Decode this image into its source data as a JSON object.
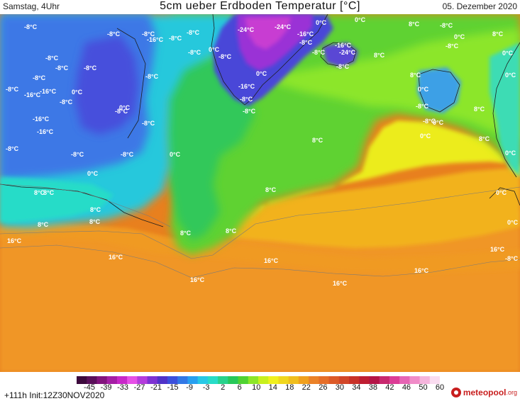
{
  "header": {
    "valid_time": "Samstag, 4Uhr",
    "title": "5cm ueber Erdboden Temperatur [°C]",
    "date": "05. Dezember 2020"
  },
  "map": {
    "variable": "5cm ueber Erdboden Temperatur",
    "labels": [
      {
        "text": "-8°C"
      },
      {
        "text": "-8°C"
      },
      {
        "text": "-16°C"
      },
      {
        "text": "-16°C"
      },
      {
        "text": "-8°C"
      },
      {
        "text": "-24°C"
      },
      {
        "text": "-24°C"
      },
      {
        "text": "0°C"
      },
      {
        "text": "8°C"
      },
      {
        "text": "-8°C"
      },
      {
        "text": "0°C"
      },
      {
        "text": "8°C"
      },
      {
        "text": "-8°C"
      },
      {
        "text": "-8°C"
      },
      {
        "text": "-8°C"
      },
      {
        "text": "-16°C"
      },
      {
        "text": "-8°C"
      },
      {
        "text": "0°C"
      },
      {
        "text": "-8°C"
      },
      {
        "text": "-8°C"
      },
      {
        "text": "-16°C"
      },
      {
        "text": "-8°C"
      },
      {
        "text": "0°C"
      },
      {
        "text": "-8°C"
      },
      {
        "text": "-16°C"
      },
      {
        "text": "-24°C"
      },
      {
        "text": "-8°C"
      },
      {
        "text": "8°C"
      },
      {
        "text": "-8°C"
      },
      {
        "text": "0°C"
      },
      {
        "text": "-8°C"
      },
      {
        "text": "-8°C"
      },
      {
        "text": "-8°C"
      },
      {
        "text": "-8°C"
      },
      {
        "text": "0°C"
      },
      {
        "text": "-16°C"
      },
      {
        "text": "-8°C"
      },
      {
        "text": "-8°C"
      },
      {
        "text": "-16°C"
      },
      {
        "text": "0°C"
      },
      {
        "text": "-8°C"
      },
      {
        "text": "-16°C"
      },
      {
        "text": "-8°C"
      },
      {
        "text": "-8°C"
      },
      {
        "text": "8°C"
      },
      {
        "text": "0°C"
      },
      {
        "text": "-8°C"
      },
      {
        "text": "-8°C"
      },
      {
        "text": "0°C"
      },
      {
        "text": "-8°C"
      },
      {
        "text": "8°C"
      },
      {
        "text": "8°C"
      },
      {
        "text": "-8°C"
      },
      {
        "text": "-8°C"
      },
      {
        "text": "0°C"
      },
      {
        "text": "0°C"
      },
      {
        "text": "0°C"
      },
      {
        "text": "0°C"
      },
      {
        "text": "8°C"
      },
      {
        "text": "0°C"
      },
      {
        "text": "0°C"
      },
      {
        "text": "8°C"
      },
      {
        "text": "8°C"
      },
      {
        "text": "8°C"
      },
      {
        "text": "8°C"
      },
      {
        "text": "8°C"
      },
      {
        "text": "0°C"
      },
      {
        "text": "16°C"
      },
      {
        "text": "16°C"
      },
      {
        "text": "16°C"
      },
      {
        "text": "16°C"
      },
      {
        "text": "16°C"
      },
      {
        "text": "16°C"
      },
      {
        "text": "16°C"
      },
      {
        "text": "8°C"
      },
      {
        "text": "8°C"
      },
      {
        "text": "8°C"
      },
      {
        "text": "0°C"
      },
      {
        "text": "-8°C"
      }
    ]
  },
  "colorbar": {
    "ticks": [
      "-45",
      "-39",
      "-33",
      "-27",
      "-21",
      "-15",
      "-9",
      "-3",
      "2",
      "6",
      "10",
      "14",
      "18",
      "22",
      "26",
      "30",
      "34",
      "38",
      "42",
      "46",
      "50",
      "60"
    ],
    "colors": [
      "#3c0a3c",
      "#5a0f5a",
      "#82147d",
      "#a51ea5",
      "#c828c8",
      "#e650e6",
      "#b43cdc",
      "#7d32d2",
      "#5032c8",
      "#3c50dc",
      "#3278e6",
      "#28a0f0",
      "#28c8e6",
      "#28dcc8",
      "#28d28c",
      "#28c85a",
      "#50d232",
      "#8ce628",
      "#c8f01e",
      "#f0f01e",
      "#f0d71e",
      "#f0be1e",
      "#f0a01e",
      "#eb8228",
      "#e66e28",
      "#dc5a28",
      "#d24628",
      "#c83228",
      "#be1e32",
      "#b41446",
      "#c8286e",
      "#dc3c96",
      "#e664b4",
      "#f08cc8",
      "#f5b4dc",
      "#fadcf0"
    ]
  },
  "footer": {
    "run_info": "+111h  Init:12Z30NOV2020",
    "brand": "meteopool",
    "brand_tld": ".org"
  }
}
